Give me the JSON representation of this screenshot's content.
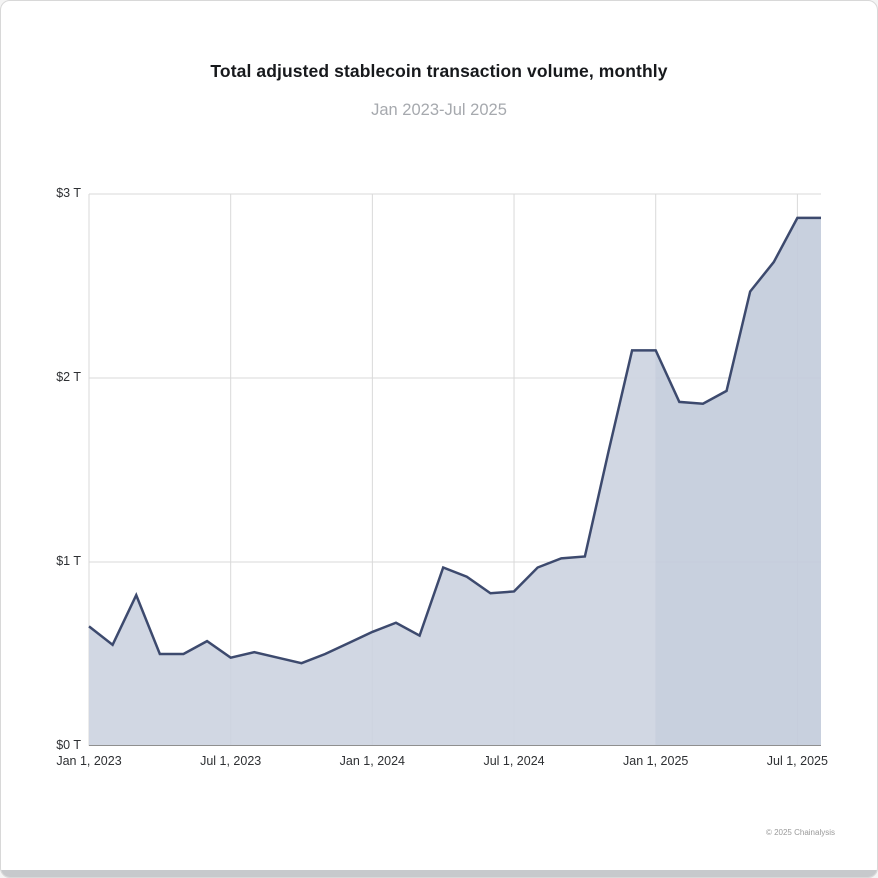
{
  "frame": {
    "footer_credit": "© 2025 Chainalysis"
  },
  "chart_data": {
    "type": "area",
    "title": "Total adjusted stablecoin transaction volume, monthly",
    "subtitle": "Jan 2023-Jul 2025",
    "series_name": "Total adjusted stablecoin transaction volume",
    "x": [
      "Jan 2023",
      "Feb 2023",
      "Mar 2023",
      "Apr 2023",
      "May 2023",
      "Jun 2023",
      "Jul 2023",
      "Aug 2023",
      "Sep 2023",
      "Oct 2023",
      "Nov 2023",
      "Dec 2023",
      "Jan 2024",
      "Feb 2024",
      "Mar 2024",
      "Apr 2024",
      "May 2024",
      "Jun 2024",
      "Jul 2024",
      "Aug 2024",
      "Sep 2024",
      "Oct 2024",
      "Nov 2024",
      "Dec 2024",
      "Jan 2025",
      "Feb 2025",
      "Mar 2025",
      "Apr 2025",
      "May 2025",
      "Jun 2025",
      "Jul 2025"
    ],
    "values": [
      0.65,
      0.55,
      0.82,
      0.5,
      0.5,
      0.57,
      0.48,
      0.51,
      0.48,
      0.45,
      0.5,
      0.56,
      0.62,
      0.67,
      0.6,
      0.97,
      0.92,
      0.83,
      0.84,
      0.97,
      1.02,
      1.03,
      1.6,
      2.15,
      2.15,
      1.87,
      1.86,
      1.93,
      2.47,
      2.63,
      2.87
    ],
    "unit": "$T",
    "ylim": [
      0,
      3
    ],
    "y_ticks": [
      0,
      1,
      2,
      3
    ],
    "y_tick_labels": [
      "$0 T",
      "$1 T",
      "$2 T",
      "$3 T"
    ],
    "x_tick_month_index": [
      0,
      6,
      12,
      18,
      24,
      30
    ],
    "x_tick_labels": [
      "Jan 1, 2023",
      "Jul 1, 2023",
      "Jan 1, 2024",
      "Jul 1, 2024",
      "Jan 1, 2025",
      "Jul 1, 2025"
    ],
    "x_months_total": 31,
    "grid": true,
    "legend": "none",
    "highlight_from_month_index": 24,
    "colors": {
      "line": "#3d4a6e",
      "fill": "#ccd3e0",
      "fill_highlight": "#8fa0c220",
      "grid": "#d9d9d9",
      "axis": "#8f8f8f",
      "title_text": "#17191c",
      "subtitle_text": "#a6a9ae",
      "tick_text": "#2e3033"
    }
  }
}
